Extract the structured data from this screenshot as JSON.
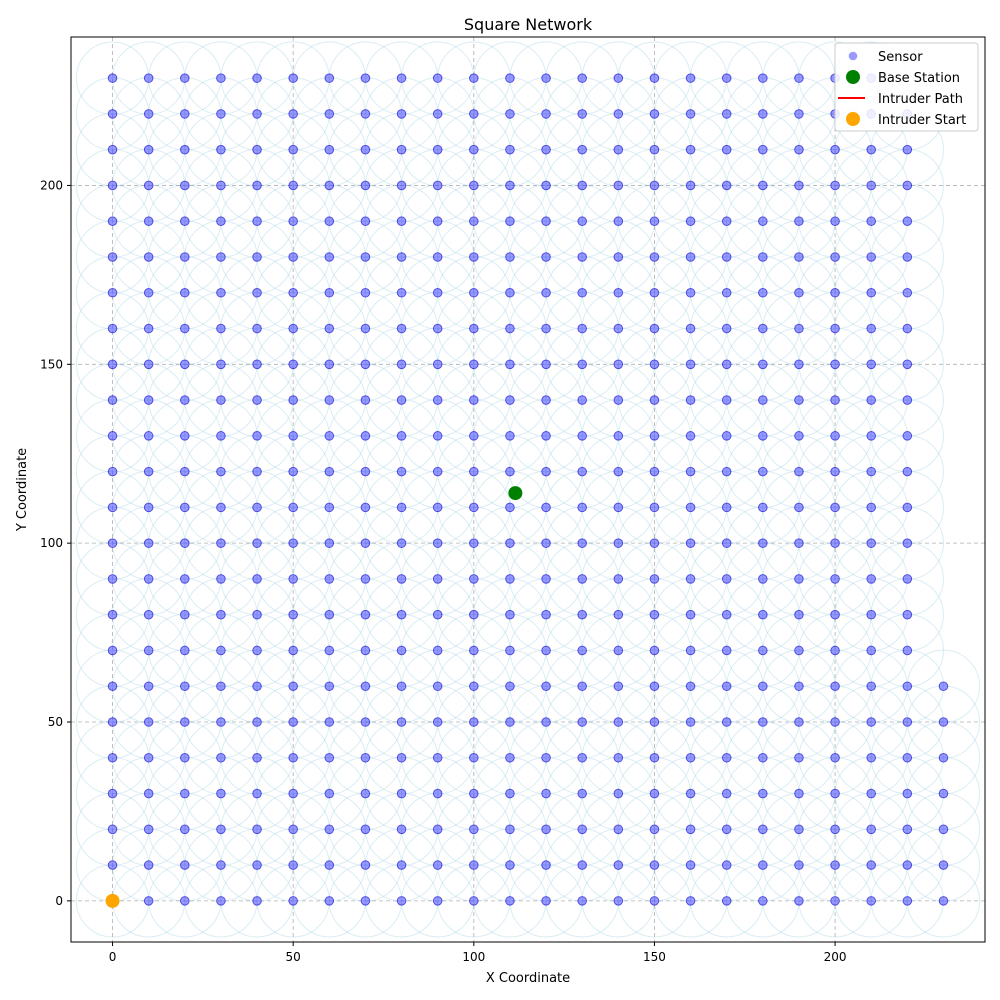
{
  "chart_data": {
    "type": "scatter",
    "title": "Square Network",
    "xlabel": "X Coordinate",
    "ylabel": "Y Coordinate",
    "xlim": [
      -11.5,
      241.5
    ],
    "ylim": [
      -11.5,
      241.5
    ],
    "xticks": [
      0,
      50,
      100,
      150,
      200
    ],
    "yticks": [
      0,
      50,
      100,
      150,
      200
    ],
    "grid": true,
    "legend_position": "top-right",
    "sensor_grid": {
      "spacing": 10,
      "x_range": [
        0,
        230
      ],
      "y_range": [
        0,
        230
      ],
      "coverage_radius": 10,
      "missing": "points with x >= 230 and y >= 70; points with x >= 220 and y >= 230"
    },
    "series": [
      {
        "name": "Sensor",
        "color": "#4646ff",
        "marker": "circle"
      },
      {
        "name": "Base Station",
        "color": "#008000",
        "marker": "circle",
        "points": [
          [
            111.5,
            114
          ]
        ]
      },
      {
        "name": "Intruder Path",
        "color": "#ff0000",
        "marker": "line",
        "points": []
      },
      {
        "name": "Intruder Start",
        "color": "#ffa500",
        "marker": "circle",
        "points": [
          [
            0,
            0
          ]
        ]
      }
    ]
  }
}
